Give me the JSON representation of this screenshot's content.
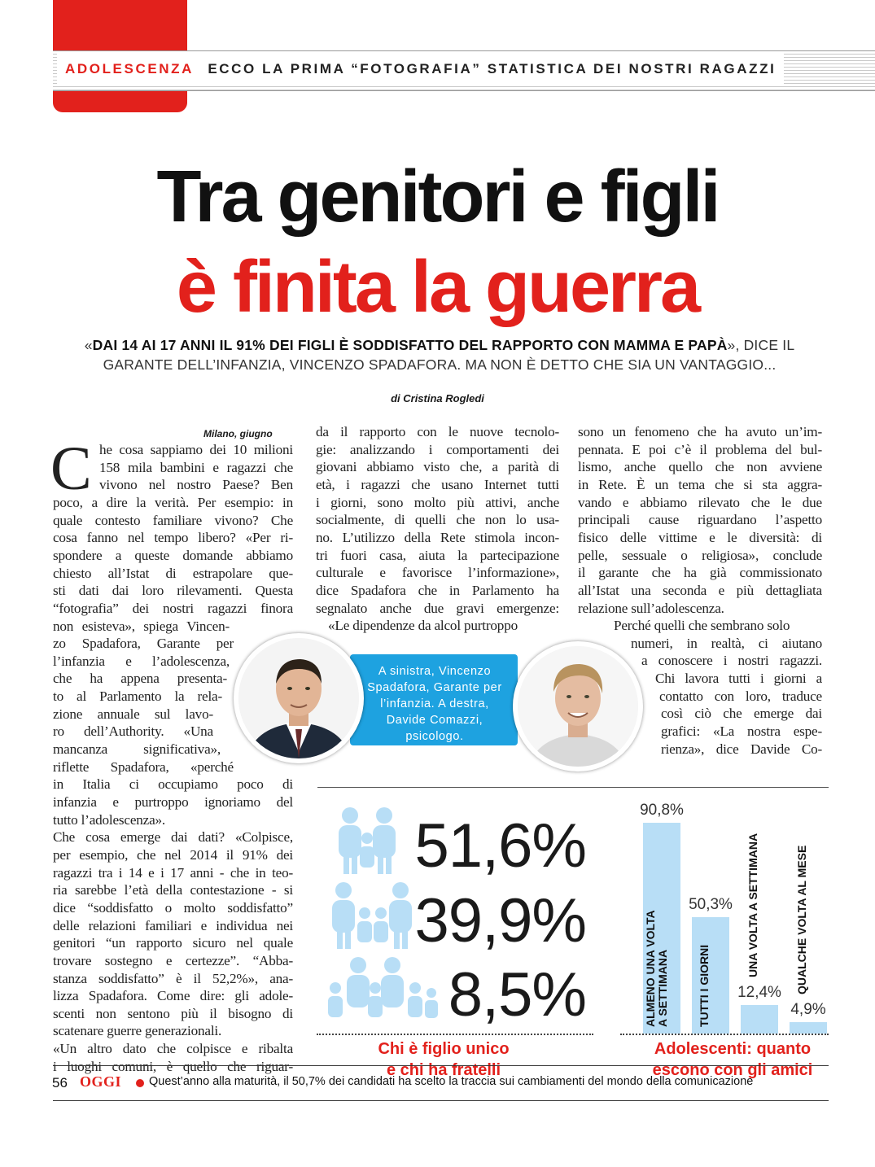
{
  "header": {
    "kicker": "ADOLESCENZA",
    "title": "ECCO LA PRIMA “FOTOGRAFIA” STATISTICA DEI NOSTRI RAGAZZI"
  },
  "headline": {
    "line1": "Tra genitori e figli",
    "line2": "è finita la guerra"
  },
  "subheadline": {
    "open": "«",
    "quote": "DAI 14 AI 17 ANNI IL 91% DEI FIGLI È SODDISFATTO DEL RAPPORTO CON MAMMA E PAPÀ",
    "rest": "», DICE IL GARANTE DELL’INFANZIA, VINCENZO SPADAFORA. MA NON È DETTO CHE SIA UN VANTAGGIO..."
  },
  "byline": "di Cristina Rogledi",
  "dateline": "Milano, giugno",
  "dropcap": "C",
  "col1_lines": [
    "he cosa sappiamo dei 10 milioni",
    "158 mila bambini e ragazzi che",
    "vivono nel nostro Paese? Ben",
    "poco, a dire la verità. Per esempio: in",
    "quale contesto familiare vivono? Che",
    "cosa fanno nel tempo libero? «Per ri-",
    "spondere a queste domande abbiamo",
    "chiesto all’Istat di estrapolare que-",
    "sti dati dai loro rilevamenti. Questa",
    "“fotografia” dei nostri ragazzi finora",
    "non esisteva», spiega Vincen-",
    "zo Spadafora, Garante per",
    "l’infanzia e l’adolescenza,",
    "che ha appena presenta-",
    "to al Parlamento la rela-",
    "zione annuale sul lavo-",
    "ro dell’Authority. «Una",
    "mancanza significativa»,",
    "riflette Spadafora, «perché",
    "in Italia ci occupiamo poco di",
    "infanzia e purtroppo ignoriamo del",
    "tutto l’adolescenza».",
    "Che cosa emerge dai dati? «Colpisce,",
    "per esempio, che nel 2014 il 91% dei",
    "ragazzi tra i 14 e i 17 anni - che in teo-",
    "ria sarebbe l’età della contestazione - si",
    "dice “soddisfatto o molto soddisfatto”",
    "delle relazioni familiari e individua nei",
    "genitori “un rapporto sicuro nel quale",
    "trovare sostegno e certezze”. “Abba-",
    "stanza soddisfatto” è il 52,2%», ana-",
    "lizza Spadafora. Come dire: gli adole-",
    "scenti non sentono più il bisogno di",
    "scatenare guerre generazionali.",
    "«Un altro dato che colpisce e ribalta",
    "i luoghi comuni, è quello che riguar-"
  ],
  "col2_lines": [
    "da il rapporto con le nuove tecnolo-",
    "gie: analizzando i comportamenti dei",
    "giovani abbiamo visto che, a parità di",
    "età, i ragazzi che usano Internet tutti",
    "i giorni, sono molto più attivi, anche",
    "socialmente, di quelli che non lo usa-",
    "no. L’utilizzo della Rete stimola incon-",
    "tri fuori casa, aiuta la partecipazione",
    "culturale e favorisce l’informazione»,",
    "dice Spadafora che in Parlamento ha",
    "segnalato anche due gravi emergenze:",
    "«Le dipendenze da alcol purtroppo"
  ],
  "col3_lines": [
    "sono un fenomeno che ha avuto un’im-",
    "pennata. E poi c’è il problema del bul-",
    "lismo, anche quello che non avviene",
    "in Rete. È un tema che si sta aggra-",
    "vando e abbiamo rilevato che le due",
    "principali cause riguardano l’aspetto",
    "fisico delle vittime e le diversità: di",
    "pelle, sessuale o religiosa», conclude",
    "il garante che ha già commissionato",
    "all’Istat una seconda e più dettagliata",
    "relazione sull’adolescenza.",
    "Perché quelli che sembrano solo",
    "numeri, in realtà, ci aiutano",
    "a conoscere i nostri ragazzi.",
    "Chi lavora tutti i giorni a",
    "contatto con loro, traduce",
    "così ciò che emerge dai",
    "grafici: «La nostra espe-",
    "rienza», dice Davide Co-"
  ],
  "caption": "A sinistra, Vincenzo Spadafora, Garante per l’infanzia. A destra, Davide Comazzi, psicologo.",
  "family_stats": {
    "values": [
      "51,6%",
      "39,9%",
      "8,5%"
    ],
    "title_line1": "Chi è figlio unico",
    "title_line2": "e chi ha fratelli"
  },
  "chart_data": {
    "type": "bar",
    "title": "Adolescenti: quanto escono con gli amici",
    "categories": [
      "ALMENO UNA VOLTA A SETTIMANA",
      "TUTTI I GIORNI",
      "UNA VOLTA A SETTIMANA",
      "QUALCHE VOLTA AL MESE"
    ],
    "values": [
      90.8,
      50.3,
      12.4,
      4.9
    ],
    "value_labels": [
      "90,8%",
      "50,3%",
      "12,4%",
      "4,9%"
    ],
    "ylim": [
      0,
      100
    ],
    "bar_color": "#b8def6"
  },
  "chart_title": {
    "line1": "Adolescenti: quanto",
    "line2": "escono con gli amici"
  },
  "footer": {
    "page_number": "56",
    "magazine": "OGGI",
    "note": "Quest’anno alla maturità, il 50,7% dei candidati ha scelto la traccia sui cambiamenti del mondo della comunicazione"
  },
  "colors": {
    "accent_red": "#e2211c",
    "caption_blue": "#1ea2e0",
    "figure_blue": "#b8def6"
  }
}
